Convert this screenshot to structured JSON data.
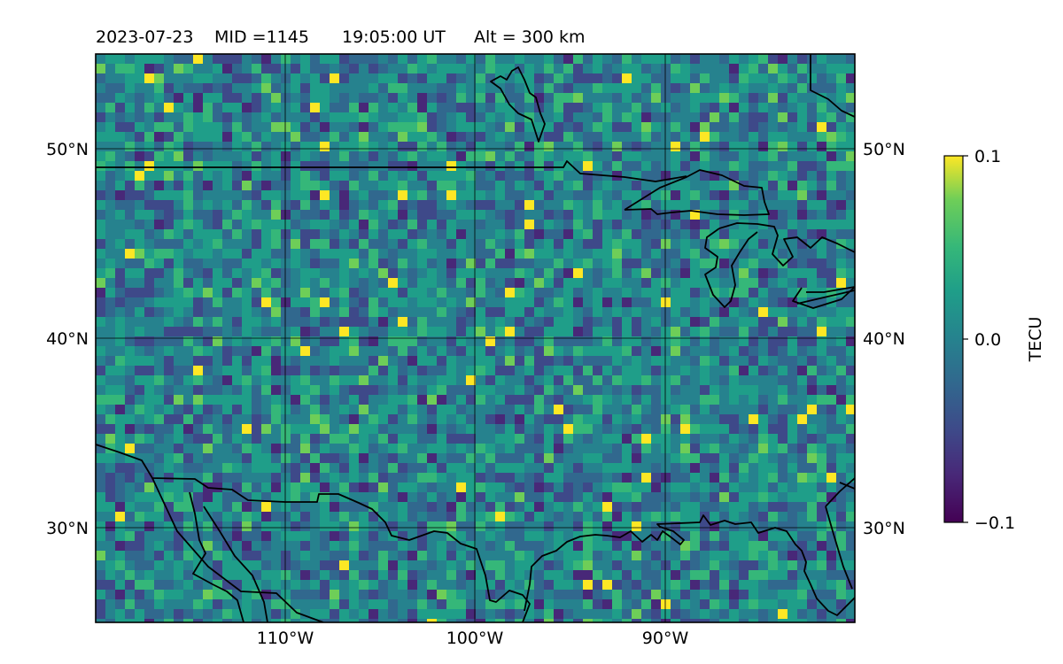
{
  "title": {
    "date": "2023-07-23",
    "mid_label": "MID =1145",
    "time_label": "19:05:00  UT",
    "alt_label": "Alt = 300 km"
  },
  "map": {
    "lon_range": [
      -120,
      -80
    ],
    "lat_range": [
      25,
      55
    ],
    "lon_ticks": [
      "110°W",
      "100°W",
      "90°W"
    ],
    "lat_ticks": [
      "50°N",
      "40°N",
      "30°N"
    ],
    "grid": true
  },
  "colorbar": {
    "label": "TECU",
    "ticks": [
      "0.1",
      "0.0",
      "−0.1"
    ],
    "vmin": -0.1,
    "vmax": 0.1,
    "colormap": "viridis"
  },
  "colors": {
    "low": "#440154",
    "mid": "#21918c",
    "high": "#fde725",
    "coastline": "#000000"
  }
}
